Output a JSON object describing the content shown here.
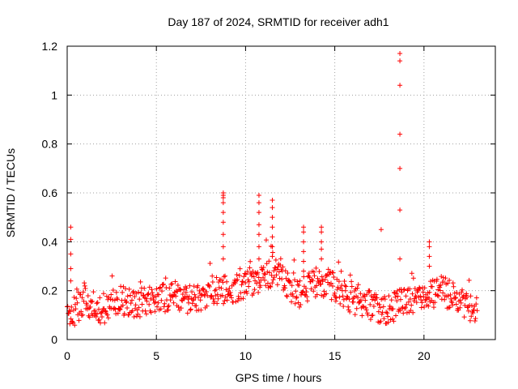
{
  "chart_data": {
    "type": "scatter",
    "title": "Day 187 of 2024, SRMTID for receiver adh1",
    "xlabel": "GPS time / hours",
    "ylabel": "SRMTID / TECUs",
    "xlim": [
      0,
      24
    ],
    "ylim": [
      0,
      1.2
    ],
    "xticks": [
      0,
      5,
      10,
      15,
      20
    ],
    "yticks": [
      0,
      0.2,
      0.4,
      0.6,
      0.8,
      1,
      1.2
    ],
    "xtick_labels": [
      "0",
      "5",
      "10",
      "15",
      "20"
    ],
    "ytick_labels": [
      "0",
      "0.2",
      "0.4",
      "0.6",
      "0.8",
      "1",
      "1.2"
    ],
    "grid": true,
    "marker": "+",
    "color": "#ff0000",
    "baseline_profile": [
      [
        0.0,
        0.11
      ],
      [
        0.5,
        0.12
      ],
      [
        1.0,
        0.16
      ],
      [
        1.5,
        0.14
      ],
      [
        2.0,
        0.12
      ],
      [
        3.0,
        0.16
      ],
      [
        4.0,
        0.15
      ],
      [
        5.0,
        0.16
      ],
      [
        6.0,
        0.18
      ],
      [
        7.0,
        0.16
      ],
      [
        8.0,
        0.2
      ],
      [
        9.0,
        0.2
      ],
      [
        10.0,
        0.22
      ],
      [
        11.0,
        0.26
      ],
      [
        12.0,
        0.28
      ],
      [
        12.5,
        0.2
      ],
      [
        13.0,
        0.18
      ],
      [
        14.0,
        0.24
      ],
      [
        15.0,
        0.22
      ],
      [
        16.0,
        0.16
      ],
      [
        17.0,
        0.14
      ],
      [
        18.0,
        0.12
      ],
      [
        19.0,
        0.16
      ],
      [
        20.0,
        0.18
      ],
      [
        21.0,
        0.2
      ],
      [
        22.0,
        0.16
      ],
      [
        23.0,
        0.12
      ]
    ],
    "spikes": [
      {
        "x": 0.2,
        "values": [
          0.46,
          0.41,
          0.35,
          0.29,
          0.24
        ]
      },
      {
        "x": 8.75,
        "values": [
          0.6,
          0.59,
          0.58,
          0.56,
          0.52,
          0.48,
          0.43,
          0.38,
          0.33
        ]
      },
      {
        "x": 10.75,
        "values": [
          0.59,
          0.56,
          0.52,
          0.47,
          0.43,
          0.38,
          0.33
        ]
      },
      {
        "x": 11.5,
        "values": [
          0.57,
          0.54,
          0.5,
          0.46,
          0.42,
          0.38,
          0.34
        ]
      },
      {
        "x": 13.25,
        "values": [
          0.46,
          0.44,
          0.4,
          0.36,
          0.32,
          0.28
        ]
      },
      {
        "x": 14.25,
        "values": [
          0.46,
          0.44,
          0.4,
          0.37,
          0.33
        ]
      },
      {
        "x": 17.6,
        "values": [
          0.45
        ]
      },
      {
        "x": 18.65,
        "values": [
          1.17,
          1.14,
          1.04,
          0.84,
          0.7,
          0.53,
          0.33
        ]
      },
      {
        "x": 20.3,
        "values": [
          0.4,
          0.38,
          0.34,
          0.3
        ]
      }
    ]
  }
}
